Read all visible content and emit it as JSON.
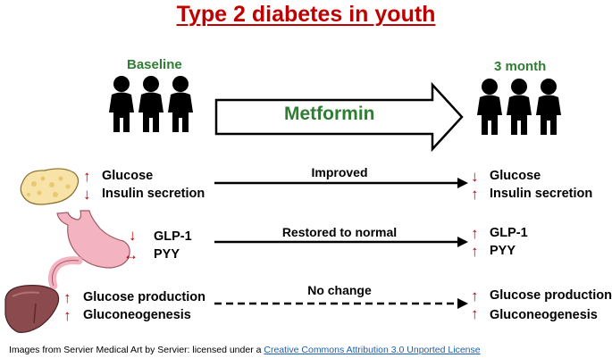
{
  "title": "Type 2 diabetes in youth",
  "baseline_label": "Baseline",
  "endpoint_label": "3 month",
  "treatment_label": "Metformin",
  "rows": [
    {
      "organ": "pancreas",
      "arrow_label": "Improved",
      "line_style": "solid",
      "baseline": [
        {
          "label": "Glucose",
          "direction": "up"
        },
        {
          "label": "Insulin secretion",
          "direction": "down"
        }
      ],
      "after": [
        {
          "label": "Glucose",
          "direction": "down"
        },
        {
          "label": "Insulin secretion",
          "direction": "up"
        }
      ]
    },
    {
      "organ": "stomach",
      "arrow_label": "Restored to normal",
      "line_style": "solid",
      "baseline": [
        {
          "label": "GLP-1",
          "direction": "down"
        },
        {
          "label": "PYY",
          "direction": "both"
        }
      ],
      "after": [
        {
          "label": "GLP-1",
          "direction": "up"
        },
        {
          "label": "PYY",
          "direction": "up"
        }
      ]
    },
    {
      "organ": "liver",
      "arrow_label": "No change",
      "line_style": "dashed",
      "baseline": [
        {
          "label": "Glucose production",
          "direction": "up"
        },
        {
          "label": "Gluconeogenesis",
          "direction": "up"
        }
      ],
      "after": [
        {
          "label": "Glucose production",
          "direction": "up"
        },
        {
          "label": "Gluconeogenesis",
          "direction": "up"
        }
      ]
    }
  ],
  "footer": {
    "text": "Images from Servier Medical Art by Servier: licensed under a ",
    "link_text": "Creative Commons Attribution 3.0 Unported License"
  },
  "colors": {
    "title": "#c00000",
    "green_labels": "#2e7d32",
    "indicator_arrows": "#c00000"
  }
}
